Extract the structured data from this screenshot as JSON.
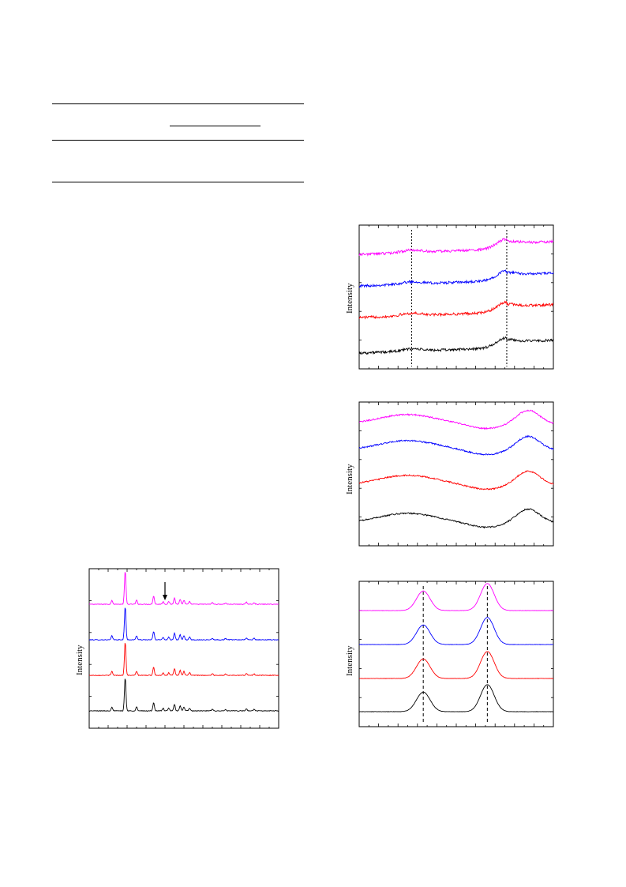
{
  "table": {
    "rule_count": 4
  },
  "colors": {
    "magenta": "#ff00ff",
    "blue": "#0000ff",
    "red": "#ff0000",
    "black": "#000000"
  },
  "chart_data": [
    {
      "id": "panel-bottom-left",
      "type": "line",
      "title": "",
      "xlabel": "",
      "ylabel": "Intensity",
      "series_colors": [
        "#ff00ff",
        "#0000ff",
        "#ff0000",
        "#000000"
      ],
      "x_range": [
        0,
        1
      ],
      "peaks_x": [
        0.12,
        0.19,
        0.25,
        0.34,
        0.39,
        0.42,
        0.45,
        0.48,
        0.5,
        0.53,
        0.65,
        0.72,
        0.83,
        0.87
      ],
      "peaks_h": [
        0.12,
        1.0,
        0.12,
        0.25,
        0.08,
        0.08,
        0.2,
        0.15,
        0.12,
        0.08,
        0.05,
        0.04,
        0.06,
        0.05
      ],
      "annotation": "arrow",
      "arrow_x": 0.4
    },
    {
      "id": "panel-right-top",
      "type": "line",
      "title": "",
      "xlabel": "",
      "ylabel": "Intensity",
      "series_colors": [
        "#ff00ff",
        "#0000ff",
        "#ff0000",
        "#000000"
      ],
      "x_range": [
        0,
        1
      ],
      "reference_lines_x": [
        0.27,
        0.76
      ],
      "reference_line_style": "dotted"
    },
    {
      "id": "panel-right-middle",
      "type": "line",
      "title": "",
      "xlabel": "",
      "ylabel": "Intensity",
      "series_colors": [
        "#ff00ff",
        "#0000ff",
        "#ff0000",
        "#000000"
      ],
      "x_range": [
        0,
        1
      ]
    },
    {
      "id": "panel-right-bottom",
      "type": "line",
      "title": "",
      "xlabel": "",
      "ylabel": "Intensity",
      "series_colors": [
        "#ff00ff",
        "#0000ff",
        "#ff0000",
        "#000000"
      ],
      "x_range": [
        0,
        1
      ],
      "reference_lines_x": [
        0.33,
        0.66
      ],
      "reference_line_style": "dashed"
    }
  ]
}
